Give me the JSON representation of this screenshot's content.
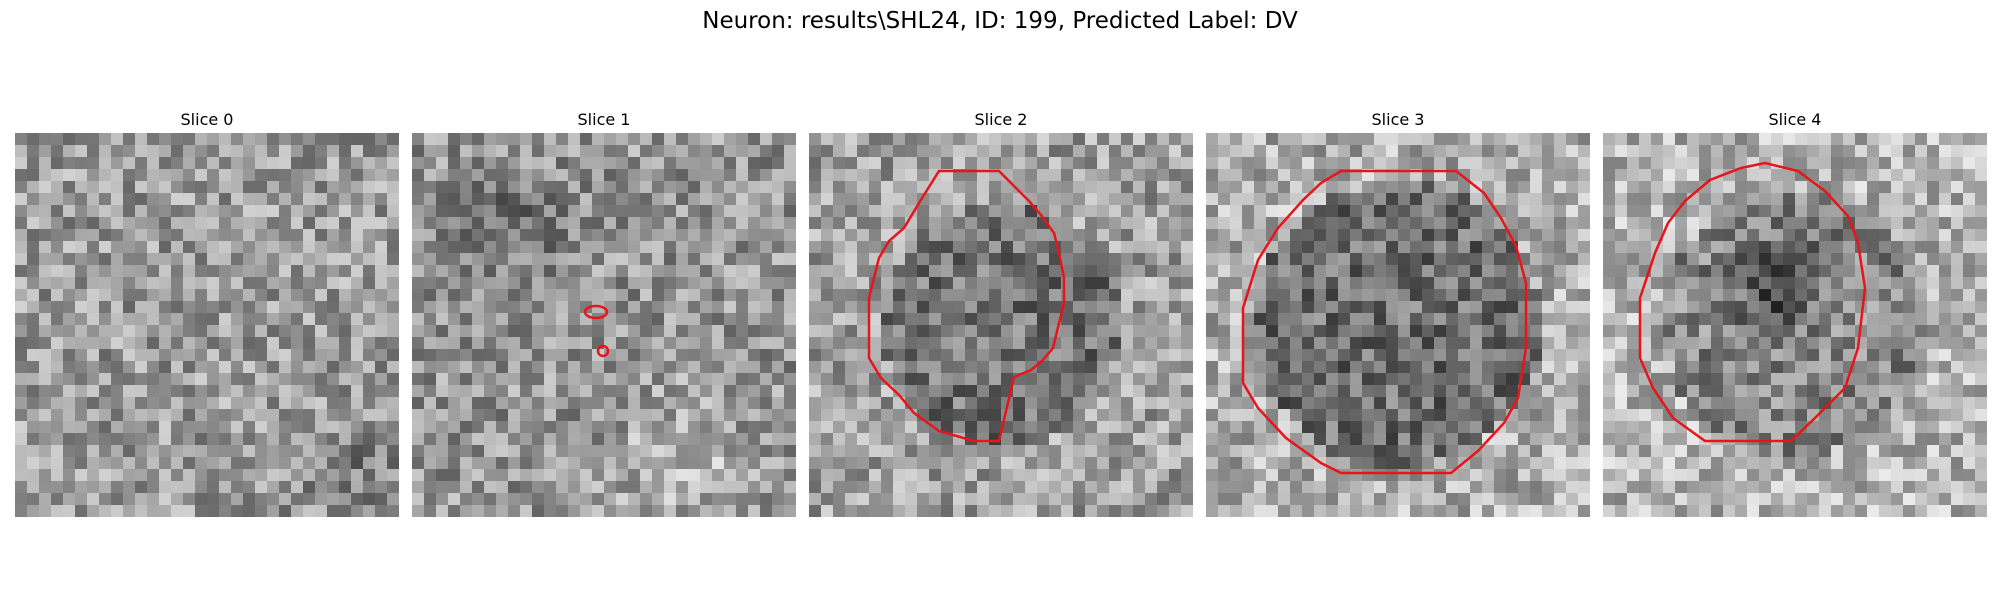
{
  "figure": {
    "title": "Neuron: results\\SHL24, ID: 199, Predicted Label: DV"
  },
  "panels": [
    {
      "title": "Slice 0",
      "has_contour": false
    },
    {
      "title": "Slice 1",
      "has_contour": true
    },
    {
      "title": "Slice 2",
      "has_contour": true
    },
    {
      "title": "Slice 3",
      "has_contour": true
    },
    {
      "title": "Slice 4",
      "has_contour": true
    }
  ],
  "colors": {
    "contour": "#e8141a"
  }
}
